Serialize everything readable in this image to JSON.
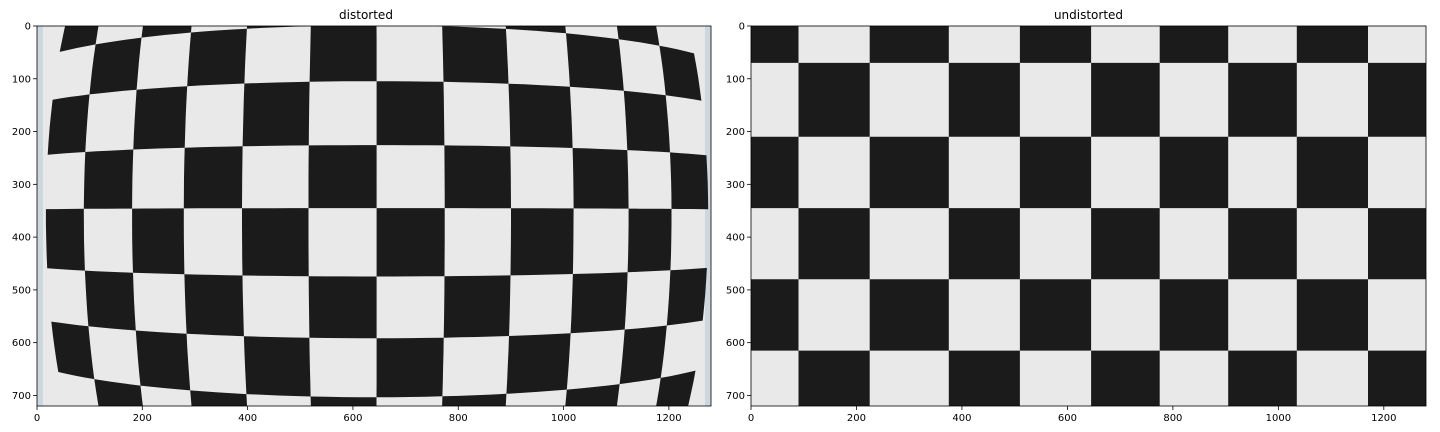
{
  "panels": [
    {
      "id": "left",
      "title": "distorted",
      "x_ticks": [
        "0",
        "200",
        "400",
        "600",
        "800",
        "1000",
        "1200"
      ],
      "y_ticks": [
        "0",
        "100",
        "200",
        "300",
        "400",
        "500",
        "600",
        "700"
      ],
      "x_range": [
        0,
        1280
      ],
      "y_range": [
        720,
        0
      ],
      "distorted": true
    },
    {
      "id": "right",
      "title": "undistorted",
      "x_ticks": [
        "0",
        "200",
        "400",
        "600",
        "800",
        "1000",
        "1200"
      ],
      "y_ticks": [
        "0",
        "100",
        "200",
        "300",
        "400",
        "500",
        "600",
        "700"
      ],
      "x_range": [
        0,
        1280
      ],
      "y_range": [
        720,
        0
      ],
      "distorted": false
    }
  ],
  "colors": {
    "dark_square": "#1b1b1b",
    "light_square": "#e9e9e9",
    "paper_edge": "#cdd7de"
  }
}
